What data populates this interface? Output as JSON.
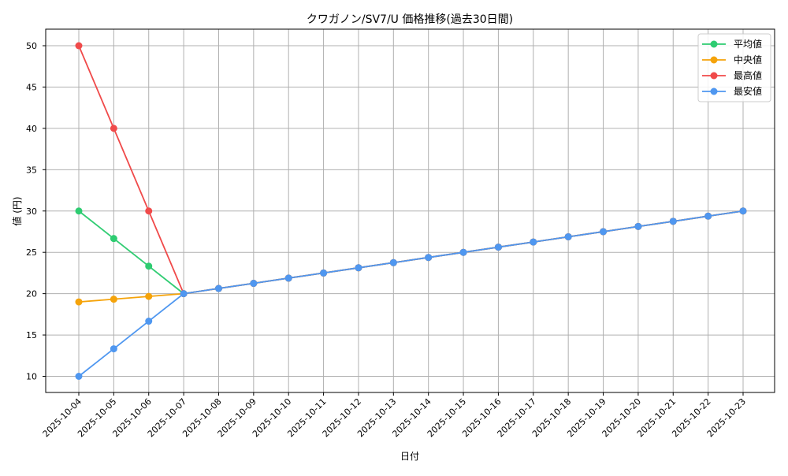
{
  "chart_data": {
    "type": "line",
    "title": "クワガノン/SV7/U 価格推移(過去30日間)",
    "xlabel": "日付",
    "ylabel": "値 (円)",
    "ylim": [
      8,
      52
    ],
    "yticks": [
      10,
      15,
      20,
      25,
      30,
      35,
      40,
      45,
      50
    ],
    "grid": true,
    "legend_position": "upper right",
    "categories": [
      "2025-10-04",
      "2025-10-05",
      "2025-10-06",
      "2025-10-07",
      "2025-10-08",
      "2025-10-09",
      "2025-10-10",
      "2025-10-11",
      "2025-10-12",
      "2025-10-13",
      "2025-10-14",
      "2025-10-15",
      "2025-10-16",
      "2025-10-17",
      "2025-10-18",
      "2025-10-19",
      "2025-10-20",
      "2025-10-21",
      "2025-10-22",
      "2025-10-23"
    ],
    "series": [
      {
        "name": "平均値",
        "color": "#2ecc71",
        "values": [
          30,
          26.67,
          23.33,
          20,
          20.63,
          21.25,
          21.88,
          22.5,
          23.13,
          23.75,
          24.38,
          25,
          25.63,
          26.25,
          26.88,
          27.5,
          28.13,
          28.75,
          29.38,
          30
        ]
      },
      {
        "name": "中央値",
        "color": "#f5a30a",
        "values": [
          19,
          19.33,
          19.67,
          20,
          20.63,
          21.25,
          21.88,
          22.5,
          23.13,
          23.75,
          24.38,
          25,
          25.63,
          26.25,
          26.88,
          27.5,
          28.13,
          28.75,
          29.38,
          30
        ]
      },
      {
        "name": "最高値",
        "color": "#f04a4a",
        "values": [
          50,
          40,
          30,
          20,
          20.63,
          21.25,
          21.88,
          22.5,
          23.13,
          23.75,
          24.38,
          25,
          25.63,
          26.25,
          26.88,
          27.5,
          28.13,
          28.75,
          29.38,
          30
        ]
      },
      {
        "name": "最安値",
        "color": "#4f97f0",
        "values": [
          10,
          13.33,
          16.67,
          20,
          20.63,
          21.25,
          21.88,
          22.5,
          23.13,
          23.75,
          24.38,
          25,
          25.63,
          26.25,
          26.88,
          27.5,
          28.13,
          28.75,
          29.38,
          30
        ]
      }
    ]
  }
}
